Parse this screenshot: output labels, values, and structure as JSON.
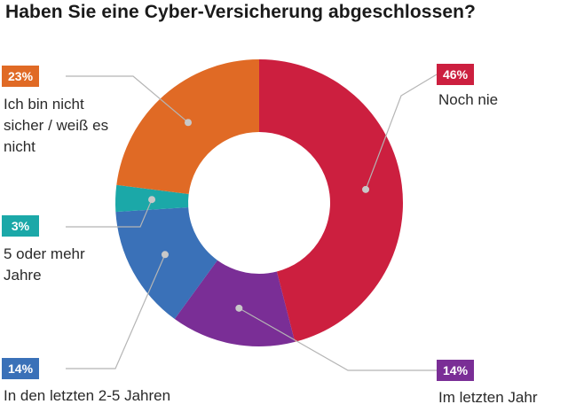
{
  "title": "Haben Sie eine Cyber-Versicherung abgeschlossen?",
  "chart_data": {
    "type": "pie",
    "donut": true,
    "title": "Haben Sie eine Cyber-Versicherung abgeschlossen?",
    "slices": [
      {
        "label": "Noch nie",
        "value": 46,
        "value_label": "46%",
        "color": "#cc1f3f"
      },
      {
        "label": "Im letzten Jahr",
        "value": 14,
        "value_label": "14%",
        "color": "#7a2e96"
      },
      {
        "label": "In den letzten 2-5 Jahren",
        "value": 14,
        "value_label": "14%",
        "color": "#3a71b8"
      },
      {
        "label": "5 oder mehr Jahre",
        "value": 3,
        "value_label": "3%",
        "color": "#1ba8a8"
      },
      {
        "label": "Ich bin nicht sicher / weiß es nicht",
        "value": 23,
        "value_label": "23%",
        "color": "#e06a25"
      }
    ]
  }
}
